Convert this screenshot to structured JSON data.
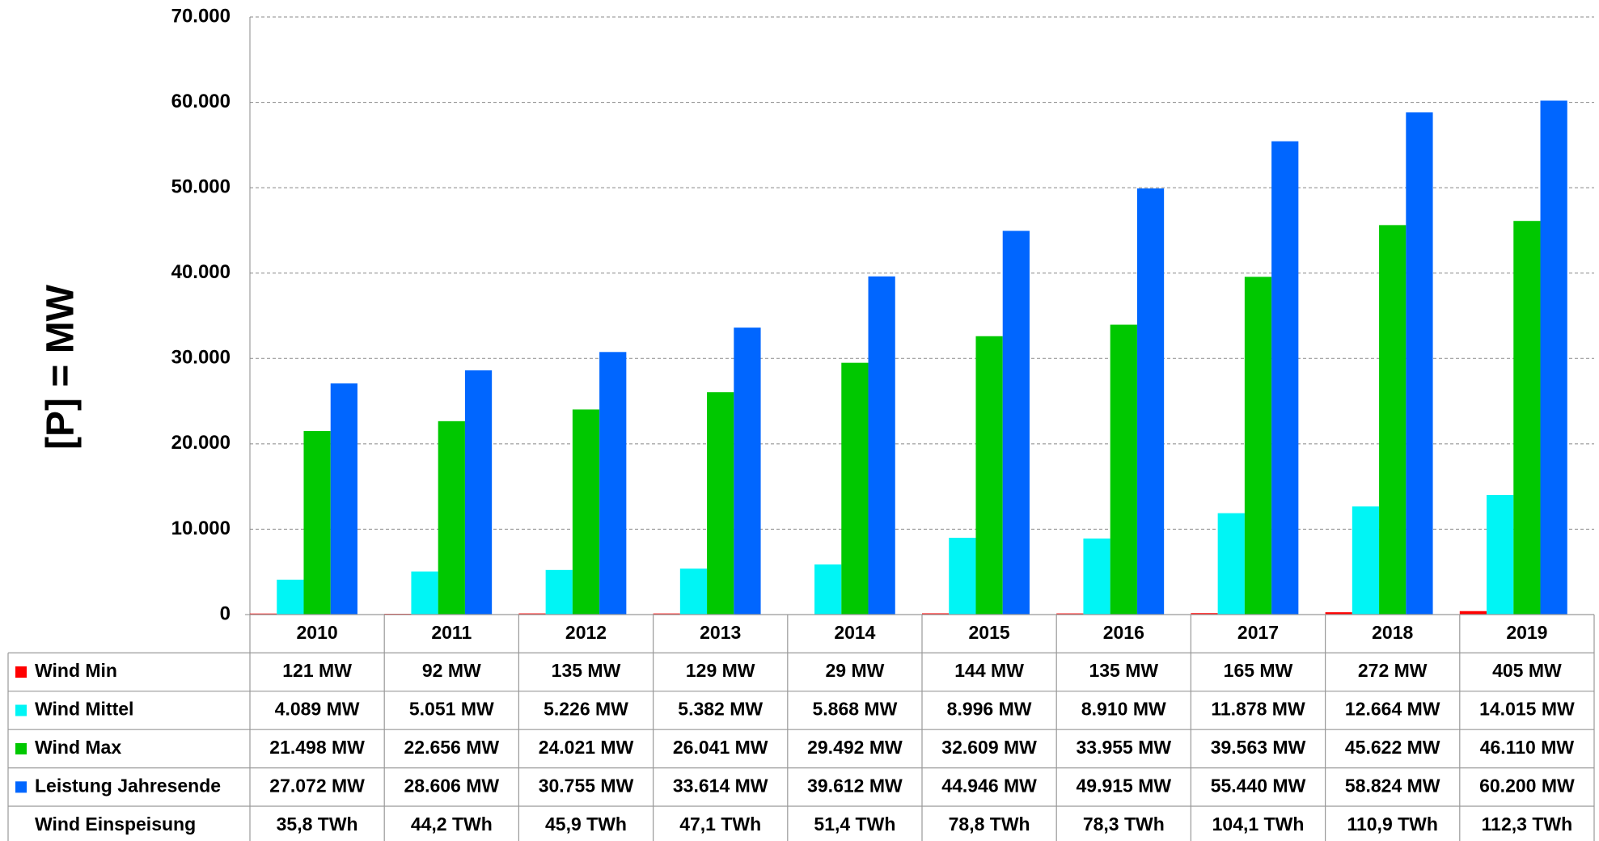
{
  "chart_data": {
    "type": "bar",
    "y_label": "[P]  =  MW",
    "categories": [
      "2010",
      "2011",
      "2012",
      "2013",
      "2014",
      "2015",
      "2016",
      "2017",
      "2018",
      "2019"
    ],
    "ylim": [
      0,
      70000
    ],
    "yticks": [
      0,
      {
        "value": 10000,
        "label": "10.000"
      },
      {
        "value": 20000,
        "label": "20.000"
      },
      {
        "value": 30000,
        "label": "30.000"
      },
      {
        "value": 40000,
        "label": "40.000"
      },
      {
        "value": 50000,
        "label": "50.000"
      },
      {
        "value": 60000,
        "label": "60.000"
      },
      {
        "value": 70000,
        "label": "70.000"
      }
    ],
    "grid": true,
    "series": [
      {
        "name": "Wind Min",
        "color": "#ff0000",
        "values": [
          121,
          92,
          135,
          129,
          29,
          144,
          135,
          165,
          272,
          405
        ],
        "value_labels": [
          "121 MW",
          "92 MW",
          "135 MW",
          "129 MW",
          "29 MW",
          "144 MW",
          "135 MW",
          "165 MW",
          "272 MW",
          "405 MW"
        ]
      },
      {
        "name": "Wind Mittel",
        "color": "#00f5f5",
        "values": [
          4089,
          5051,
          5226,
          5382,
          5868,
          8996,
          8910,
          11878,
          12664,
          14015
        ],
        "value_labels": [
          "4.089 MW",
          "5.051 MW",
          "5.226 MW",
          "5.382 MW",
          "5.868 MW",
          "8.996 MW",
          "8.910 MW",
          "11.878 MW",
          "12.664 MW",
          "14.015 MW"
        ]
      },
      {
        "name": "Wind Max",
        "color": "#00c800",
        "values": [
          21498,
          22656,
          24021,
          26041,
          29492,
          32609,
          33955,
          39563,
          45622,
          46110
        ],
        "value_labels": [
          "21.498 MW",
          "22.656 MW",
          "24.021 MW",
          "26.041 MW",
          "29.492 MW",
          "32.609 MW",
          "33.955 MW",
          "39.563 MW",
          "45.622 MW",
          "46.110 MW"
        ]
      },
      {
        "name": "Leistung Jahresende",
        "color": "#0066ff",
        "values": [
          27072,
          28606,
          30755,
          33614,
          39612,
          44946,
          49915,
          55440,
          58824,
          60200
        ],
        "value_labels": [
          "27.072 MW",
          "28.606 MW",
          "30.755 MW",
          "33.614 MW",
          "39.612 MW",
          "44.946 MW",
          "49.915 MW",
          "55.440 MW",
          "58.824 MW",
          "60.200 MW"
        ]
      }
    ],
    "table_rows": [
      {
        "name": "Wind Einspeisung",
        "values": [
          35.8,
          44.2,
          45.9,
          47.1,
          51.4,
          78.8,
          78.3,
          104.1,
          110.9,
          112.3
        ],
        "value_labels": [
          "35,8 TWh",
          "44,2 TWh",
          "45,9 TWh",
          "47,1 TWh",
          "51,4 TWh",
          "78,8 TWh",
          "78,3 TWh",
          "104,1 TWh",
          "110,9 TWh",
          "112,3 TWh"
        ]
      }
    ]
  }
}
